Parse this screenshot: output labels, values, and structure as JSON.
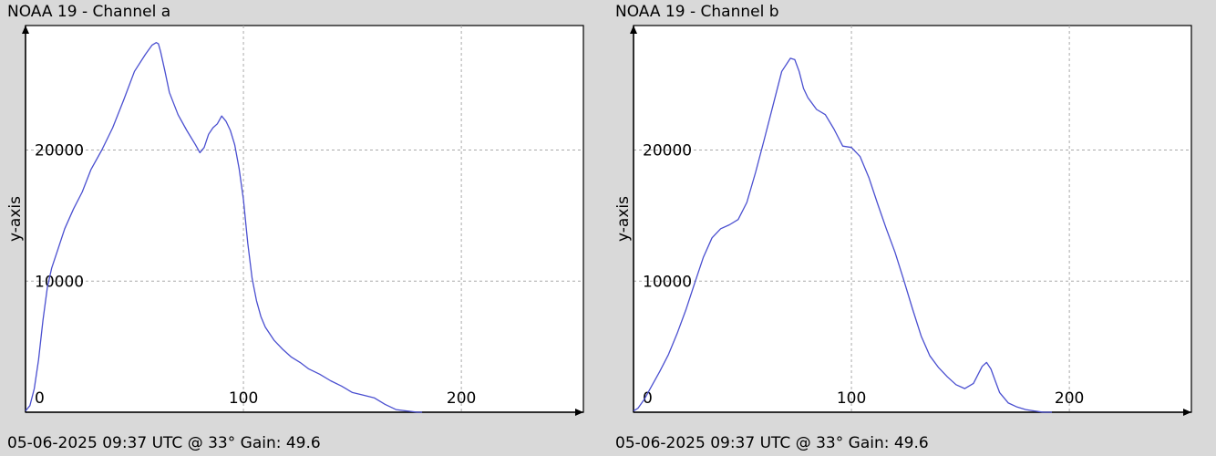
{
  "panels": [
    {
      "title": "NOAA 19 - Channel a",
      "footer": "05-06-2025 09:37 UTC @ 33° Gain: 49.6"
    },
    {
      "title": "NOAA 19 - Channel b",
      "footer": "05-06-2025 09:37 UTC @ 33° Gain: 49.6"
    }
  ],
  "colors": {
    "background": "#d9d9d9",
    "plot_area": "#ffffff",
    "line": "#4a4fd0",
    "grid": "#aaaaaa",
    "axis": "#000000"
  },
  "chart_data": [
    {
      "type": "line",
      "title": "NOAA 19 - Channel a",
      "xlabel": "",
      "ylabel": "y-axis",
      "xlim": [
        0,
        256
      ],
      "ylim": [
        0,
        29500
      ],
      "xticks": [
        0,
        100,
        200
      ],
      "yticks": [
        10000,
        20000
      ],
      "grid": true,
      "series": [
        {
          "x": [
            0,
            2,
            4,
            6,
            8,
            10,
            12,
            15,
            18,
            22,
            26,
            30,
            35,
            40,
            45,
            50,
            55,
            58,
            60,
            61,
            62,
            64,
            66,
            70,
            74,
            78,
            80,
            82,
            84,
            86,
            88,
            90,
            92,
            94,
            96,
            98,
            100,
            102,
            104,
            106,
            108,
            110,
            114,
            118,
            122,
            126,
            130,
            135,
            140,
            145,
            150,
            155,
            160,
            165,
            170,
            175,
            180,
            182
          ],
          "y": [
            100,
            500,
            1800,
            4000,
            7000,
            9500,
            11000,
            12500,
            14000,
            15500,
            16800,
            18500,
            20000,
            21700,
            23800,
            26000,
            27300,
            28000,
            28200,
            28100,
            27500,
            26000,
            24400,
            22700,
            21500,
            20400,
            19800,
            20200,
            21200,
            21700,
            22000,
            22600,
            22200,
            21500,
            20400,
            18600,
            16200,
            12900,
            10200,
            8500,
            7300,
            6500,
            5500,
            4800,
            4200,
            3800,
            3300,
            2900,
            2400,
            2000,
            1500,
            1300,
            1100,
            600,
            200,
            100,
            0,
            0
          ]
        }
      ]
    },
    {
      "type": "line",
      "title": "NOAA 19 - Channel b",
      "xlabel": "",
      "ylabel": "y-axis",
      "xlim": [
        0,
        256
      ],
      "ylim": [
        0,
        29500
      ],
      "xticks": [
        0,
        100,
        200
      ],
      "yticks": [
        10000,
        20000
      ],
      "grid": true,
      "series": [
        {
          "x": [
            0,
            2,
            5,
            8,
            12,
            16,
            20,
            24,
            28,
            32,
            36,
            40,
            44,
            48,
            52,
            56,
            60,
            64,
            68,
            72,
            74,
            76,
            78,
            80,
            84,
            88,
            92,
            96,
            100,
            104,
            108,
            112,
            116,
            120,
            124,
            128,
            132,
            136,
            140,
            144,
            148,
            152,
            156,
            160,
            162,
            164,
            166,
            168,
            172,
            176,
            180,
            184,
            188,
            192
          ],
          "y": [
            100,
            300,
            1000,
            1900,
            3100,
            4400,
            6000,
            7800,
            9800,
            11800,
            13300,
            14000,
            14300,
            14700,
            16000,
            18300,
            20800,
            23400,
            26000,
            27000,
            26900,
            26000,
            24700,
            24000,
            23100,
            22700,
            21600,
            20300,
            20200,
            19500,
            17900,
            15900,
            14000,
            12200,
            10100,
            7900,
            5800,
            4300,
            3400,
            2700,
            2100,
            1800,
            2200,
            3500,
            3800,
            3300,
            2400,
            1500,
            700,
            400,
            200,
            100,
            0,
            0
          ]
        }
      ]
    }
  ]
}
